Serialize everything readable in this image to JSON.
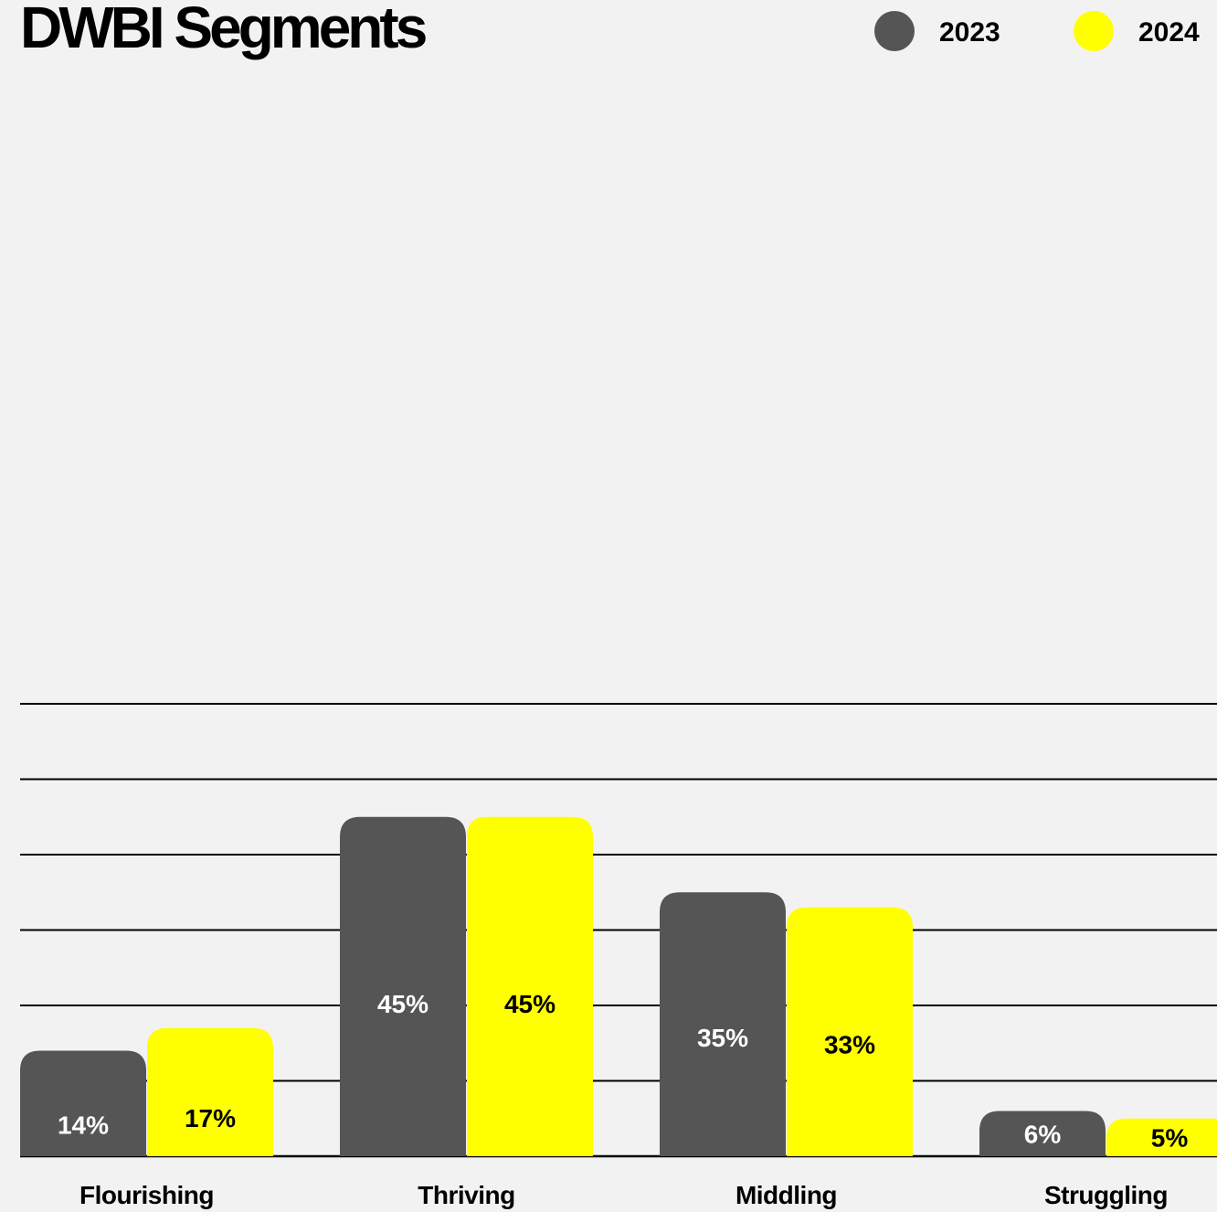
{
  "chart_data": {
    "type": "bar",
    "title": "DWBI Segments",
    "categories": [
      "Flourishing",
      "Thriving",
      "Middling",
      "Struggling"
    ],
    "series": [
      {
        "name": "2023",
        "values": [
          14,
          45,
          35,
          6
        ],
        "labels": [
          "14%",
          "45%",
          "35%",
          "6%"
        ],
        "color": "#555555"
      },
      {
        "name": "2024",
        "values": [
          17,
          45,
          33,
          5
        ],
        "labels": [
          "17%",
          "45%",
          "33%",
          "5%"
        ],
        "color": "#ffff00"
      }
    ],
    "ylim": [
      0,
      60
    ],
    "grid": true,
    "legend_position": "top-right"
  },
  "colors": {
    "background": "#f2f2f2",
    "gridline": "#000000",
    "label_on_dark": "#ffffff",
    "label_on_light": "#000000"
  }
}
